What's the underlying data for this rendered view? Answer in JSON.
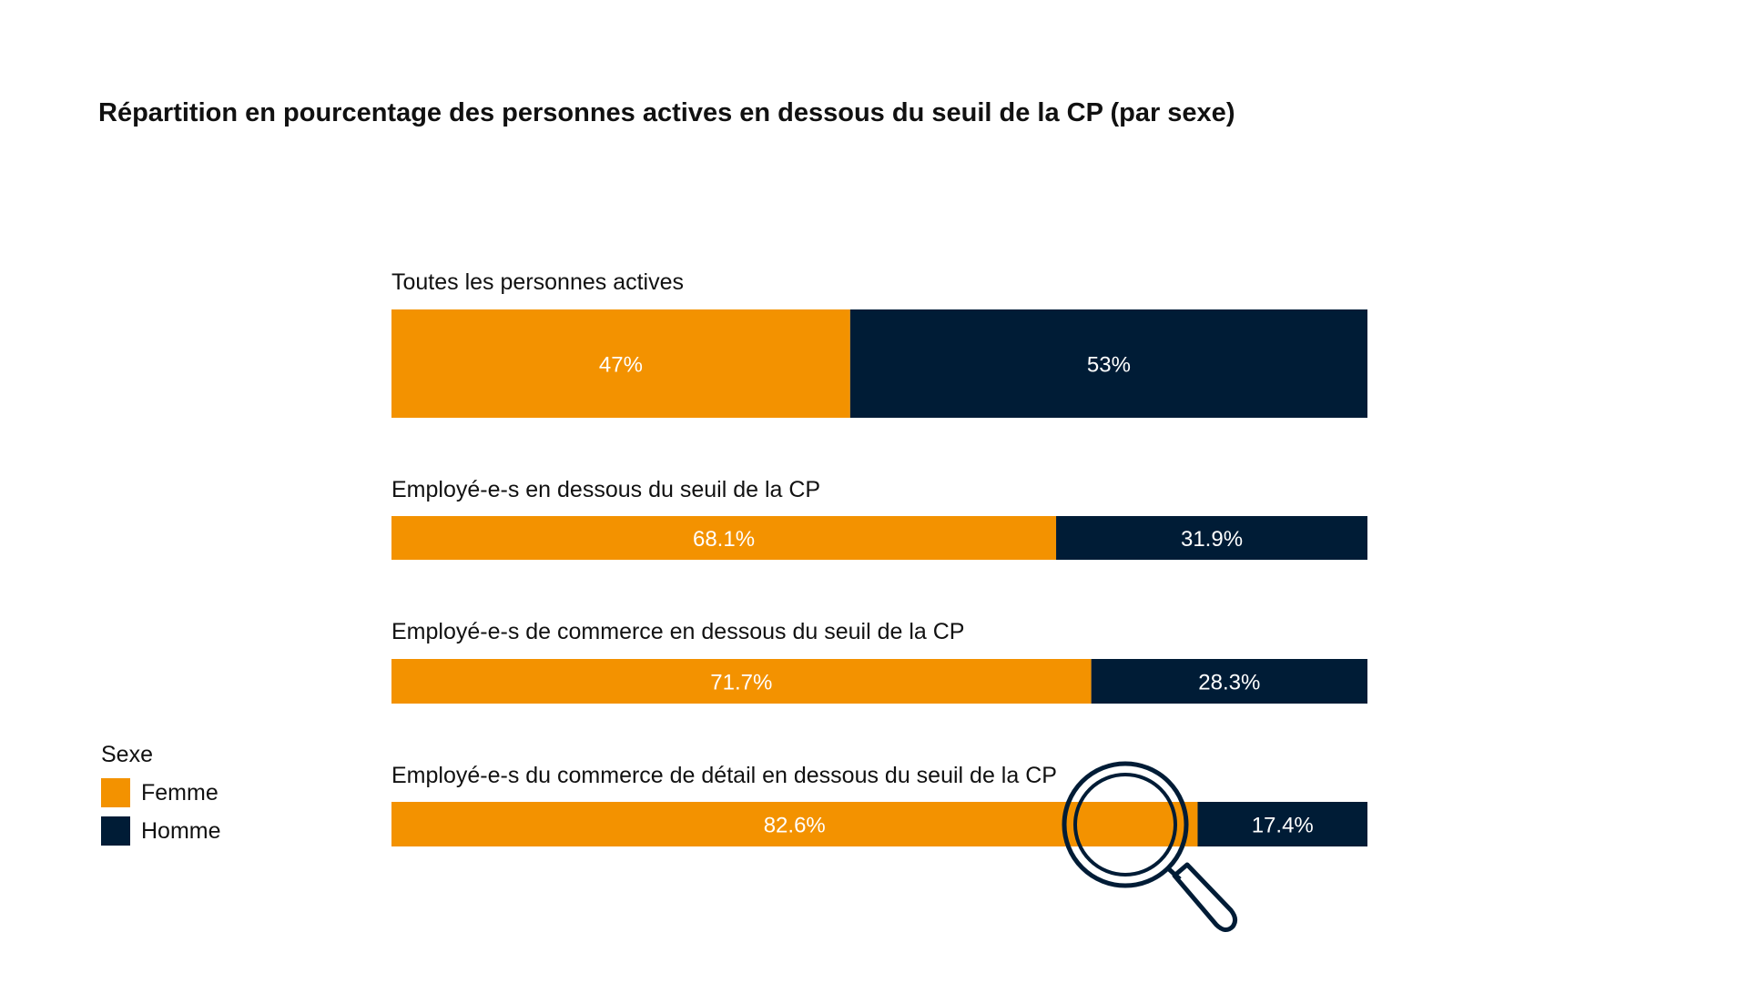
{
  "chart_data": {
    "type": "bar",
    "orientation": "horizontal-stacked-100",
    "title": "Répartition en pourcentage des personnes actives en dessous du seuil de la CP (par sexe)",
    "categories": [
      "Toutes les personnes actives",
      "Employé-e-s en dessous du seuil de la CP",
      "Employé-e-s de commerce en dessous du seuil de la CP",
      "Employé-e-s du commerce de détail en dessous du seuil de la CP"
    ],
    "series": [
      {
        "name": "Femme",
        "color": "#f39200",
        "values": [
          47,
          68.1,
          71.7,
          82.6
        ],
        "labels": [
          "47%",
          "68.1%",
          "71.7%",
          "82.6%"
        ]
      },
      {
        "name": "Homme",
        "color": "#001c36",
        "values": [
          53,
          31.9,
          28.3,
          17.4
        ],
        "labels": [
          "53%",
          "31.9%",
          "28.3%",
          "17.4%"
        ]
      }
    ],
    "legend": {
      "title": "Sexe",
      "placement": "bottom-left"
    },
    "highlight": {
      "category_index": 3,
      "series_index": 0,
      "icon": "magnifier-icon"
    },
    "xlim": [
      0,
      100
    ]
  }
}
